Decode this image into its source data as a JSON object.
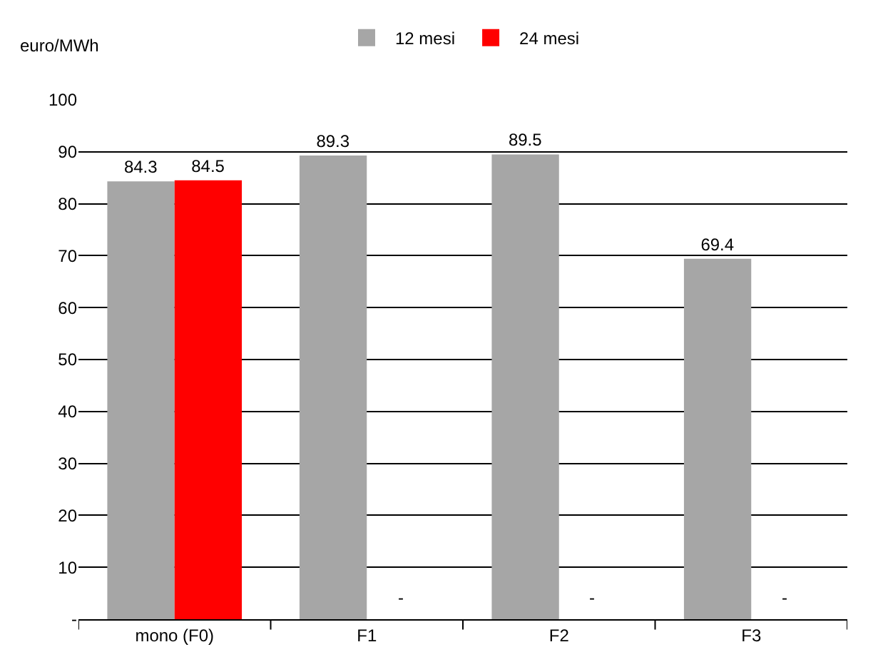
{
  "chart_data": {
    "type": "bar",
    "annotations": [
      "euro/MWh"
    ],
    "categories": [
      "mono (F0)",
      "F1",
      "F2",
      "F3"
    ],
    "series": [
      {
        "name": "12 mesi",
        "color": "#a6a6a6",
        "values": [
          84.3,
          89.3,
          89.5,
          69.4
        ],
        "value_labels": [
          "84.3",
          "89.3",
          "89.5",
          "69.4"
        ]
      },
      {
        "name": "24 mesi",
        "color": "#ff0000",
        "values": [
          84.5,
          null,
          null,
          null
        ],
        "value_labels": [
          "84.5",
          "-",
          "-",
          "-"
        ]
      }
    ],
    "ylim": [
      0,
      100
    ],
    "yticks": [
      {
        "value": 0,
        "label": "-"
      },
      10,
      20,
      30,
      40,
      50,
      60,
      70,
      80,
      90,
      100
    ],
    "grid": "y",
    "legend": "top"
  }
}
